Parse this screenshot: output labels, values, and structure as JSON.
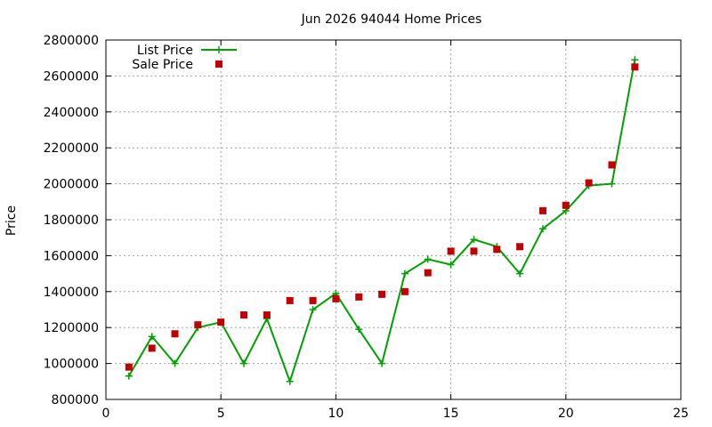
{
  "chart_data": {
    "type": "line",
    "title": "Jun 2026 94044 Home Prices",
    "xlabel": "",
    "ylabel": "Price",
    "xlim": [
      0,
      25
    ],
    "ylim": [
      800000,
      2800000
    ],
    "xticks": [
      0,
      5,
      10,
      15,
      20,
      25
    ],
    "yticks": [
      800000,
      1000000,
      1200000,
      1400000,
      1600000,
      1800000,
      2000000,
      2200000,
      2400000,
      2600000,
      2800000
    ],
    "grid": true,
    "legend_position": "top-left",
    "series": [
      {
        "name": "List Price",
        "style": "line-with-plus-markers",
        "color": "#00a000",
        "x": [
          1,
          2,
          3,
          4,
          5,
          6,
          7,
          8,
          9,
          10,
          11,
          12,
          13,
          14,
          15,
          16,
          17,
          18,
          19,
          20,
          21,
          22,
          23
        ],
        "values": [
          930000,
          1150000,
          1000000,
          1200000,
          1230000,
          1000000,
          1250000,
          900000,
          1300000,
          1390000,
          1190000,
          1000000,
          1500000,
          1580000,
          1550000,
          1690000,
          1650000,
          1500000,
          1750000,
          1850000,
          1990000,
          2000000,
          2690000
        ]
      },
      {
        "name": "Sale Price",
        "style": "square-markers",
        "color": "#c00000",
        "x": [
          1,
          2,
          3,
          4,
          5,
          6,
          7,
          8,
          9,
          10,
          11,
          12,
          13,
          14,
          15,
          16,
          17,
          18,
          19,
          20,
          21,
          22,
          23
        ],
        "values": [
          980000,
          1085000,
          1165000,
          1215000,
          1230000,
          1270000,
          1270000,
          1350000,
          1350000,
          1360000,
          1370000,
          1385000,
          1400000,
          1505000,
          1625000,
          1625000,
          1635000,
          1650000,
          1850000,
          1880000,
          2005000,
          2105000,
          2650000
        ]
      }
    ]
  }
}
